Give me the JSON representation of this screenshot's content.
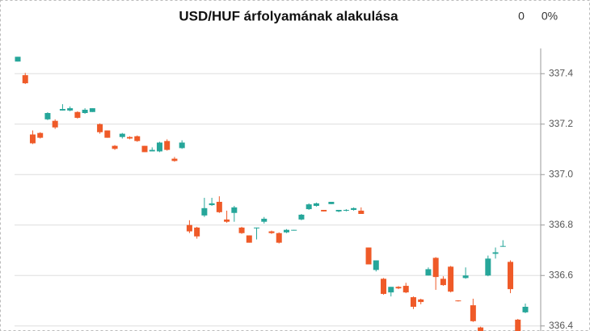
{
  "chart_data": {
    "type": "candlestick",
    "title": "USD/HUF árfolyamának alakulása",
    "summary": [
      "0",
      "0%"
    ],
    "up_color": "#26a69a",
    "down_color": "#ef5a28",
    "grid": true,
    "y_axis_side": "right",
    "ylim": [
      336.38,
      337.5
    ],
    "yticks": [
      336.4,
      336.6,
      336.8,
      {
        "value": 337,
        "label": "337.0"
      },
      337.2,
      337.4
    ],
    "open": [
      337.448,
      337.394,
      337.159,
      337.165,
      337.219,
      337.213,
      337.254,
      337.254,
      337.248,
      337.244,
      337.248,
      337.2,
      337.175,
      337.114,
      337.149,
      337.149,
      337.152,
      337.114,
      337.092,
      337.092,
      337.133,
      337.063,
      337.105,
      336.8,
      336.79,
      336.838,
      336.879,
      336.892,
      336.822,
      336.848,
      336.79,
      336.759,
      336.787,
      336.813,
      336.775,
      336.768,
      336.771,
      336.778,
      336.822,
      336.863,
      336.876,
      336.86,
      336.883,
      336.854,
      336.857,
      336.86,
      336.857,
      336.711,
      336.622,
      336.587,
      336.533,
      336.555,
      336.559,
      336.514,
      336.505,
      336.6,
      336.67,
      336.587,
      336.635,
      336.501,
      336.59,
      336.482,
      336.394,
      336.6,
      336.686,
      336.714,
      336.654,
      336.425,
      336.454
    ],
    "high": [
      337.467,
      337.403,
      337.175,
      337.168,
      337.247,
      337.219,
      337.279,
      337.27,
      337.251,
      337.263,
      337.263,
      337.203,
      337.175,
      337.117,
      337.165,
      337.152,
      337.155,
      337.114,
      337.108,
      337.13,
      337.14,
      337.07,
      337.136,
      336.819,
      336.793,
      336.908,
      336.908,
      336.914,
      336.857,
      336.876,
      336.793,
      336.759,
      336.79,
      336.832,
      336.778,
      336.771,
      336.784,
      336.781,
      336.844,
      336.886,
      336.889,
      336.86,
      336.892,
      336.86,
      336.863,
      336.87,
      336.87,
      336.711,
      336.66,
      336.59,
      336.555,
      336.558,
      336.571,
      336.517,
      336.508,
      336.632,
      336.673,
      336.597,
      336.638,
      336.502,
      336.632,
      336.508,
      336.397,
      336.679,
      336.711,
      336.74,
      336.66,
      336.428,
      336.489
    ],
    "low": [
      337.448,
      337.359,
      337.121,
      337.143,
      337.216,
      337.181,
      337.254,
      337.251,
      337.222,
      337.241,
      337.248,
      337.162,
      337.146,
      337.098,
      337.143,
      337.14,
      337.13,
      337.089,
      337.092,
      337.089,
      337.095,
      337.051,
      337.102,
      336.768,
      336.746,
      336.832,
      336.876,
      336.848,
      336.809,
      336.813,
      336.765,
      336.73,
      336.743,
      336.806,
      336.765,
      336.727,
      336.768,
      336.778,
      336.819,
      336.86,
      336.873,
      336.854,
      336.883,
      336.851,
      336.854,
      336.857,
      336.844,
      336.644,
      336.616,
      336.524,
      336.517,
      336.546,
      336.53,
      336.467,
      336.486,
      336.6,
      336.543,
      336.559,
      336.533,
      336.497,
      336.587,
      336.416,
      336.375,
      336.597,
      336.667,
      336.714,
      336.53,
      336.365,
      336.451
    ],
    "close": [
      337.467,
      337.362,
      337.124,
      337.146,
      337.244,
      337.187,
      337.26,
      337.263,
      337.225,
      337.257,
      337.263,
      337.168,
      337.146,
      337.102,
      337.162,
      337.143,
      337.133,
      337.089,
      337.098,
      337.127,
      337.098,
      337.054,
      337.127,
      336.775,
      336.755,
      336.867,
      336.886,
      336.851,
      336.813,
      336.87,
      336.768,
      336.73,
      336.79,
      336.825,
      336.768,
      336.73,
      336.781,
      336.781,
      336.841,
      336.882,
      336.886,
      336.854,
      336.892,
      336.86,
      336.86,
      336.867,
      336.844,
      336.644,
      336.66,
      336.527,
      336.555,
      336.549,
      336.533,
      336.476,
      336.495,
      336.625,
      336.594,
      336.562,
      336.536,
      336.498,
      336.6,
      336.419,
      336.38,
      336.667,
      336.692,
      336.717,
      336.546,
      336.37,
      336.476
    ]
  }
}
